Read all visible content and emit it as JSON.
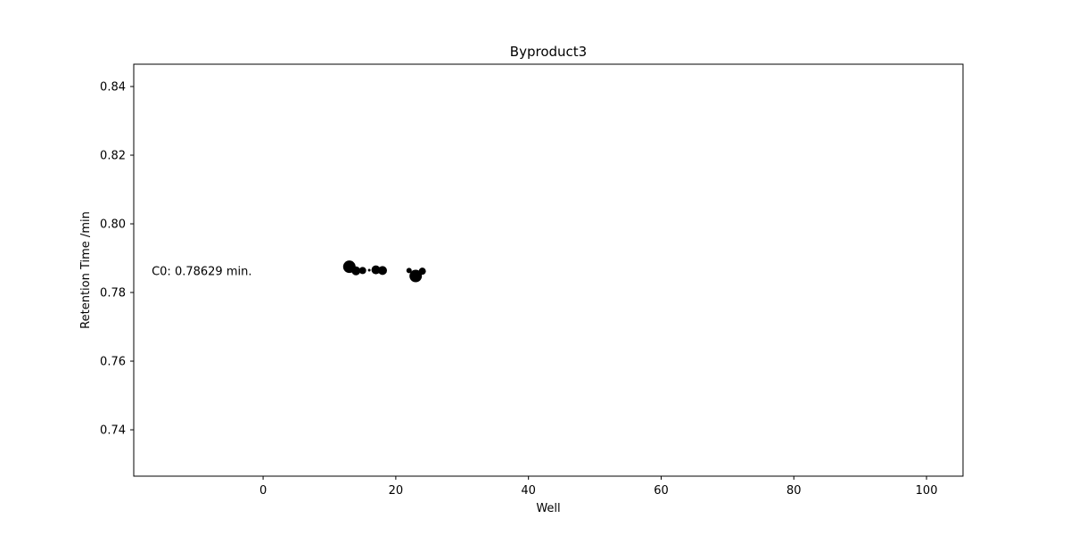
{
  "chart_data": {
    "type": "scatter",
    "title": "Byproduct3",
    "xlabel": "Well",
    "ylabel": "Retention Time /min",
    "xlim": [
      -19.5,
      105.5
    ],
    "ylim": [
      0.7265,
      0.8465
    ],
    "xticks": [
      0,
      20,
      40,
      60,
      80,
      100
    ],
    "yticks": [
      0.74,
      0.76,
      0.78,
      0.8,
      0.82,
      0.84
    ],
    "grid": false,
    "annotation": {
      "text": "C0: 0.78629 min.",
      "x": -16.8,
      "y": 0.78629
    },
    "series": [
      {
        "color": "#000000",
        "points": [
          {
            "x": 13,
            "y": 0.7875,
            "size": 7
          },
          {
            "x": 14,
            "y": 0.7863,
            "size": 5
          },
          {
            "x": 15,
            "y": 0.7864,
            "size": 4
          },
          {
            "x": 16,
            "y": 0.7865,
            "size": 1.5
          },
          {
            "x": 17,
            "y": 0.7866,
            "size": 5
          },
          {
            "x": 18,
            "y": 0.7864,
            "size": 5
          },
          {
            "x": 22,
            "y": 0.7864,
            "size": 3
          },
          {
            "x": 23,
            "y": 0.7848,
            "size": 7
          },
          {
            "x": 23.3,
            "y": 0.786,
            "size": 1.5
          },
          {
            "x": 24,
            "y": 0.7862,
            "size": 4
          }
        ]
      }
    ]
  }
}
